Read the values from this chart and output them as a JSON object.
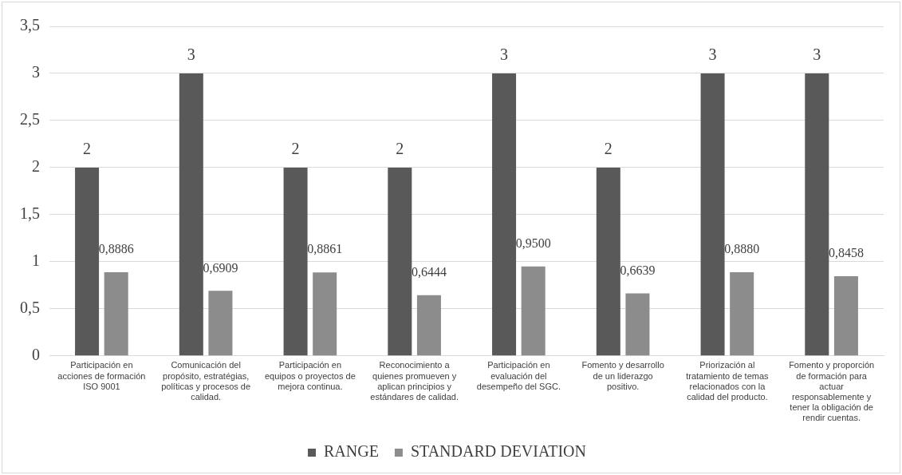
{
  "chart_data": {
    "type": "bar",
    "categories": [
      "Participación en acciones de formación ISO 9001",
      "Comunicación del propósito, estratégias, políticas y procesos de calidad.",
      "Participación en equipos o proyectos de mejora continua.",
      "Reconocimiento a quienes promueven y aplican principios y estándares de calidad.",
      "Participación en evaluación del desempeño del SGC.",
      "Fomento y desarrollo de un liderazgo positivo.",
      "Priorización al tratamiento de temas relacionados con la calidad del producto.",
      "Fomento y proporción de formación para actuar responsablemente y tener la obligación de rendir cuentas."
    ],
    "series": [
      {
        "name": "RANGE",
        "color": "#595959",
        "values": [
          2,
          3,
          2,
          2,
          3,
          2,
          3,
          3
        ],
        "value_labels": [
          "2",
          "3",
          "2",
          "2",
          "3",
          "2",
          "3",
          "3"
        ]
      },
      {
        "name": "STANDARD DEVIATION",
        "color": "#8c8c8c",
        "values": [
          0.8886,
          0.6909,
          0.8861,
          0.6444,
          0.95,
          0.6639,
          0.888,
          0.8458
        ],
        "value_labels": [
          "0,8886",
          "0,6909",
          "0,8861",
          "0,6444",
          "0,9500",
          "0,6639",
          "0,8880",
          "0,8458"
        ]
      }
    ],
    "ylim": [
      0,
      3.5
    ],
    "yticks": [
      0,
      {
        "value": 0.5,
        "label": "0,5"
      },
      1,
      {
        "value": 1.5,
        "label": "1,5"
      },
      2,
      {
        "value": 2.5,
        "label": "2,5"
      },
      3,
      {
        "value": 3.5,
        "label": "3,5"
      }
    ],
    "grid": "y",
    "legend": "bottom"
  }
}
